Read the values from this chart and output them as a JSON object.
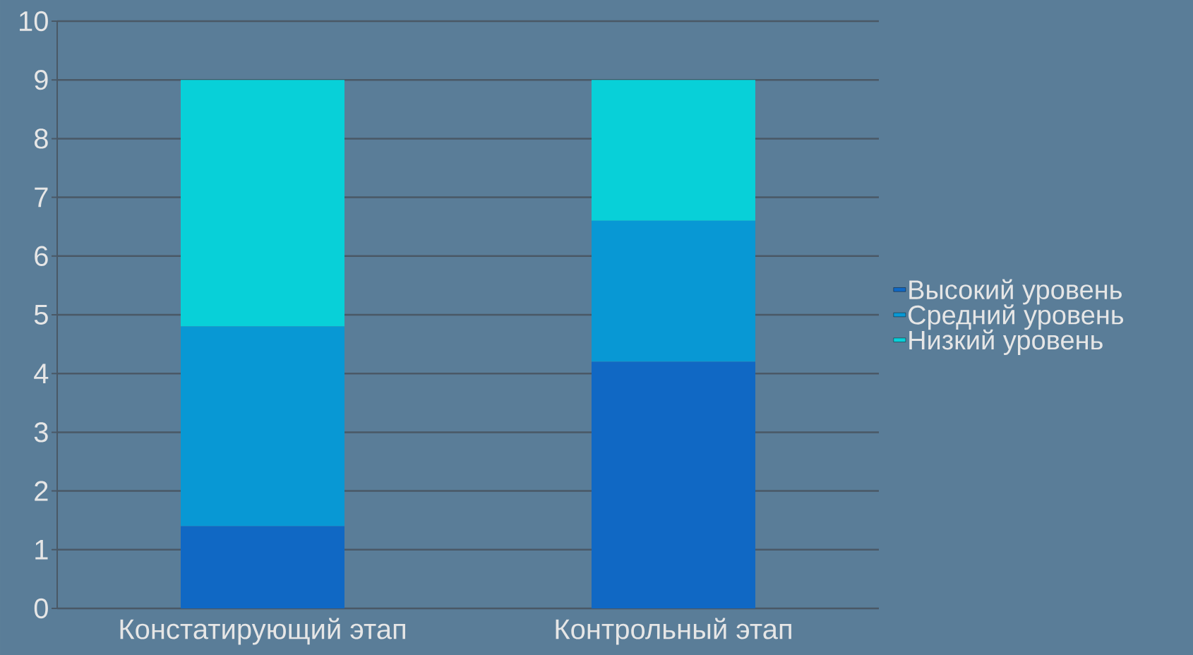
{
  "chart_data": {
    "type": "bar",
    "stacked": true,
    "categories": [
      "Констатирующий этап",
      "Контрольный этап"
    ],
    "series": [
      {
        "name": "Высокий уровень",
        "color": "#1068c4",
        "values": [
          1.4,
          4.2
        ]
      },
      {
        "name": "Средний уровень",
        "color": "#0898d4",
        "values": [
          3.4,
          2.4
        ]
      },
      {
        "name": "Низкий уровень",
        "color": "#08d0d8",
        "values": [
          4.2,
          2.4
        ]
      }
    ],
    "ylim": [
      0,
      10
    ],
    "yticks": [
      0,
      1,
      2,
      3,
      4,
      5,
      6,
      7,
      8,
      9,
      10
    ],
    "grid": "y",
    "legend": "right"
  }
}
